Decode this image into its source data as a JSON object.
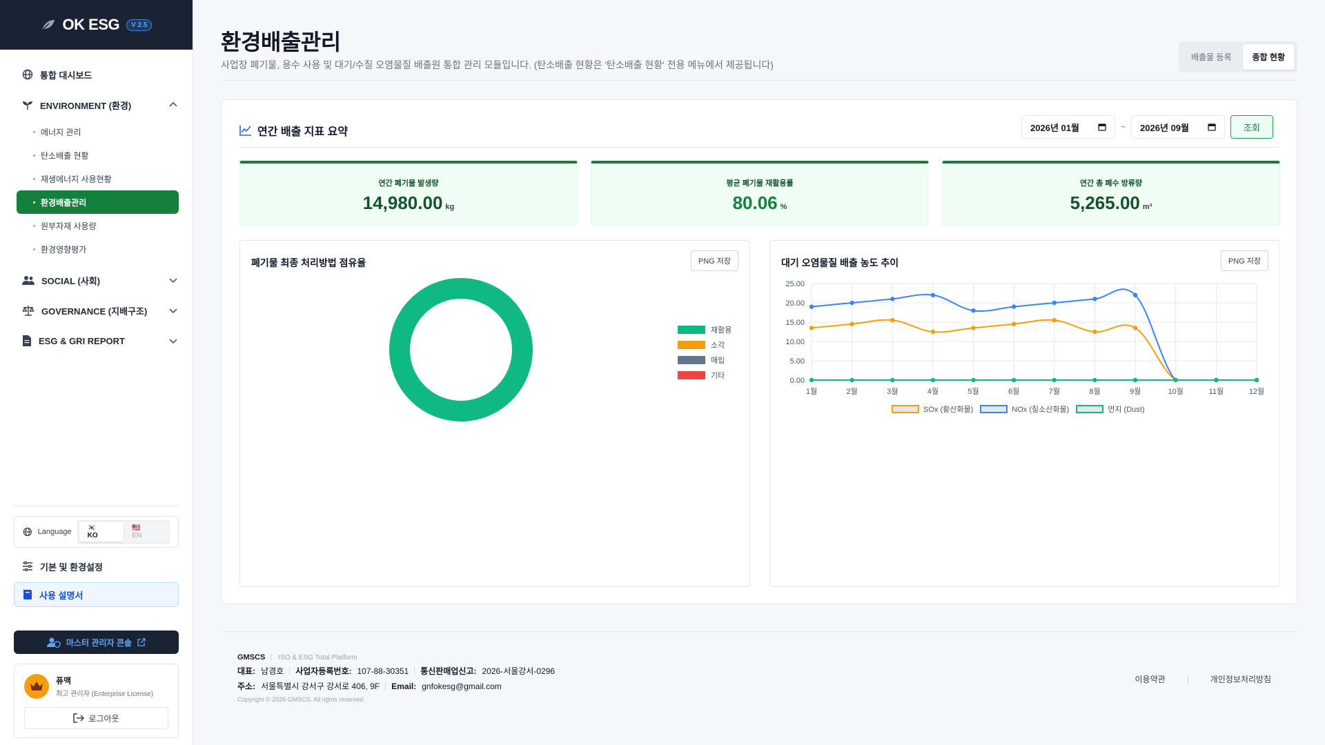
{
  "brand": {
    "name": "OK ESG",
    "version": "V 2.5"
  },
  "sidebar": {
    "dashboard": "통합 대시보드",
    "environment": {
      "label": "ENVIRONMENT (환경)",
      "items": [
        "에너지 관리",
        "탄소배출 현황",
        "재생에너지 사용현황",
        "환경배출관리",
        "원부자재 사용량",
        "환경영향평가"
      ],
      "active_index": 3
    },
    "social": "SOCIAL (사회)",
    "governance": "GOVERNANCE (지배구조)",
    "report": "ESG & GRI REPORT",
    "language": {
      "label": "Language",
      "ko": "KO",
      "en": "EN",
      "selected": "KO"
    },
    "settings": "기본 및 환경설정",
    "manual": "사용 설명서",
    "master_console": "마스터 관리자 콘솔",
    "profile": {
      "name": "퓨맥",
      "role": "최고 관리자 (Enterprise License)"
    },
    "logout": "로그아웃"
  },
  "header": {
    "title": "환경배출관리",
    "description": "사업장 폐기물, 용수 사용 및 대기/수질 오염물질 배출원 통합 관리 모듈입니다. (탄소배출 현황은 '탄소배출 현황' 전용 메뉴에서 제공됩니다)",
    "tabs": [
      "배출물 등록",
      "종합 현황"
    ],
    "active_tab": 1
  },
  "summary": {
    "title": "연간 배출 지표 요약",
    "date_from": "2026년 01월",
    "date_to": "2026년 09월",
    "tilde": "~",
    "query_button": "조회",
    "kpis": [
      {
        "label": "연간 폐기물 발생량",
        "value": "14,980.00",
        "unit": "kg"
      },
      {
        "label": "평균 폐기물 재활용률",
        "value": "80.06",
        "unit": "%"
      },
      {
        "label": "연간 총 폐수 방류량",
        "value": "5,265.00",
        "unit": "m³"
      }
    ]
  },
  "png_label": "PNG 저장",
  "chart_data": [
    {
      "type": "pie",
      "title": "폐기물 최종 처리방법 점유율",
      "categories": [
        "재활용",
        "소각",
        "매립",
        "기타"
      ],
      "values": [
        100,
        0,
        0,
        0
      ],
      "colors": [
        "#10b981",
        "#f59e0b",
        "#64748b",
        "#ef4444"
      ],
      "legend": "right"
    },
    {
      "type": "line",
      "title": "대기 오염물질 배출 농도 추이",
      "x": [
        "1월",
        "2월",
        "3월",
        "4월",
        "5월",
        "6월",
        "7월",
        "8월",
        "9월",
        "10월",
        "11월",
        "12월"
      ],
      "ylim": [
        0,
        25
      ],
      "yticks": [
        "0.00",
        "5.00",
        "10.00",
        "15.00",
        "20.00",
        "25.00"
      ],
      "grid": true,
      "legend": "bottom",
      "series": [
        {
          "name": "SOx (황산화물)",
          "color": "#f59e0b",
          "values": [
            13.5,
            14.5,
            15.5,
            12.5,
            13.5,
            14.5,
            15.5,
            12.5,
            13.5,
            0,
            0,
            0
          ]
        },
        {
          "name": "NOx (질소산화물)",
          "color": "#3b82f6",
          "values": [
            19,
            20,
            21,
            22,
            18,
            19,
            20,
            21,
            22,
            0,
            0,
            0
          ]
        },
        {
          "name": "먼지 (Dust)",
          "color": "#10b981",
          "values": [
            0,
            0,
            0,
            0,
            0,
            0,
            0,
            0,
            0,
            0,
            0,
            0
          ]
        }
      ]
    }
  ],
  "footer": {
    "company": "GMSCS",
    "tagline": "ISO & ESG Total Platform",
    "ceo_label": "대표:",
    "ceo": "남경호",
    "biz_label": "사업자등록번호:",
    "biz_no": "107-88-30351",
    "mail_order_label": "통신판매업신고:",
    "mail_order": "2026-서울강서-0296",
    "address_label": "주소:",
    "address": "서울특별시 강서구 강서로 406, 9F",
    "email_label": "Email:",
    "email": "gnfokesg@gmail.com",
    "copyright": "Copyright © 2026 GMSCS. All rights reserved.",
    "terms": "이용약관",
    "privacy": "개인정보처리방침"
  }
}
